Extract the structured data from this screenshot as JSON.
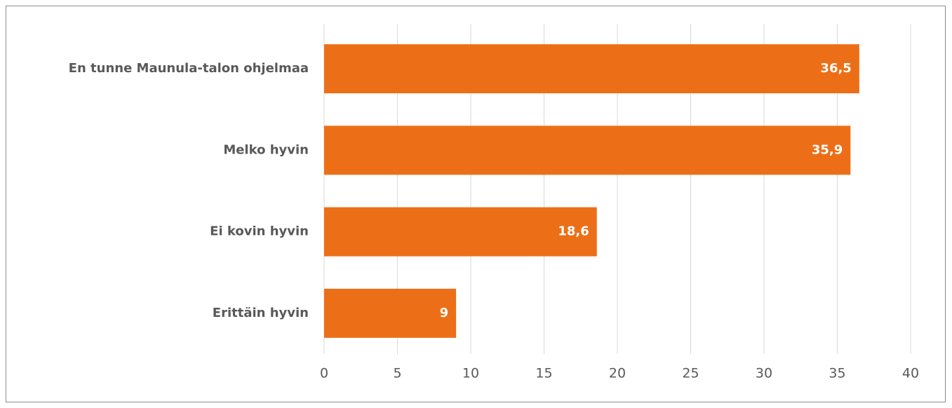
{
  "chart_data": {
    "type": "bar",
    "orientation": "horizontal",
    "categories": [
      "En tunne Maunula-talon ohjelmaa",
      "Melko hyvin",
      "Ei kovin hyvin",
      "Erittäin hyvin"
    ],
    "values": [
      36.5,
      35.9,
      18.6,
      9
    ],
    "data_labels": [
      "36,5",
      "35,9",
      "18,6",
      "9"
    ],
    "xlim": [
      0,
      40
    ],
    "xticks": [
      0,
      5,
      10,
      15,
      20,
      25,
      30,
      35,
      40
    ],
    "xtick_labels": [
      "0",
      "5",
      "10",
      "15",
      "20",
      "25",
      "30",
      "35",
      "40"
    ],
    "title": "",
    "xlabel": "",
    "ylabel": "",
    "grid": "vertical",
    "legend": "none",
    "bar_color": "#EC6F17",
    "grid_color": "#D9D9D9",
    "text_color": "#595959"
  }
}
